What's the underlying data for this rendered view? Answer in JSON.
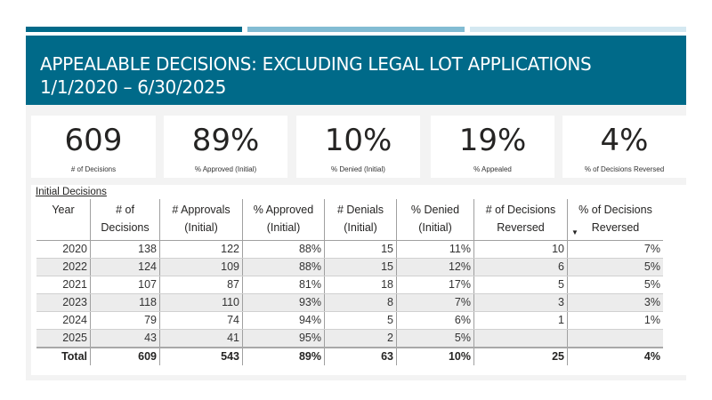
{
  "slide": {
    "title_line1": "APPEALABLE DECISIONS: EXCLUDING LEGAL LOT APPLICATIONS",
    "title_line2": "1/1/2020 – 6/30/2025",
    "accent_colors": [
      "#006a89",
      "#82bcd3",
      "#d4e8f1"
    ]
  },
  "kpis": [
    {
      "value": "609",
      "label": "# of Decisions"
    },
    {
      "value": "89%",
      "label": "% Approved (Initial)"
    },
    {
      "value": "10%",
      "label": "% Denied (Initial)"
    },
    {
      "value": "19%",
      "label": "% Appealed"
    },
    {
      "value": "4%",
      "label": "% of Decisions Reversed"
    }
  ],
  "table": {
    "title": "Initial Decisions",
    "headers": [
      {
        "line1": "Year",
        "line2": ""
      },
      {
        "line1": "# of",
        "line2": "Decisions"
      },
      {
        "line1": "# Approvals",
        "line2": "(Initial)"
      },
      {
        "line1": "% Approved",
        "line2": "(Initial)"
      },
      {
        "line1": "# Denials",
        "line2": "(Initial)"
      },
      {
        "line1": "% Denied",
        "line2": "(Initial)"
      },
      {
        "line1": "# of Decisions",
        "line2": "Reversed"
      },
      {
        "line1": "% of Decisions",
        "line2": "Reversed"
      }
    ],
    "sort_indicator": "▼",
    "rows": [
      [
        "2020",
        "138",
        "122",
        "88%",
        "15",
        "11%",
        "10",
        "7%"
      ],
      [
        "2022",
        "124",
        "109",
        "88%",
        "15",
        "12%",
        "6",
        "5%"
      ],
      [
        "2021",
        "107",
        "87",
        "81%",
        "18",
        "17%",
        "5",
        "5%"
      ],
      [
        "2023",
        "118",
        "110",
        "93%",
        "8",
        "7%",
        "3",
        "3%"
      ],
      [
        "2024",
        "79",
        "74",
        "94%",
        "5",
        "6%",
        "1",
        "1%"
      ],
      [
        "2025",
        "43",
        "41",
        "95%",
        "2",
        "5%",
        "",
        ""
      ]
    ],
    "total": [
      "Total",
      "609",
      "543",
      "89%",
      "63",
      "10%",
      "25",
      "4%"
    ]
  }
}
